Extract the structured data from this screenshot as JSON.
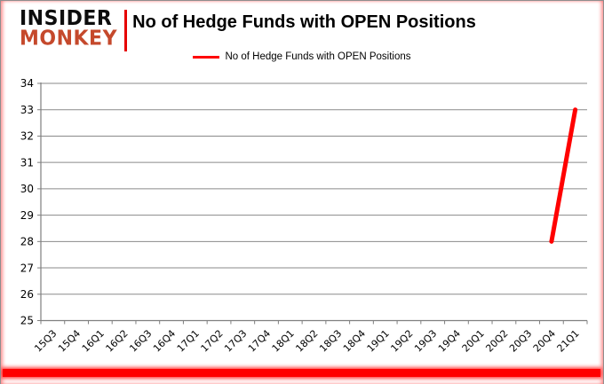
{
  "brand": {
    "line1": "INSIDER",
    "line2": "MONKEY",
    "color": "#c5492c"
  },
  "header": {
    "title": "No of Hedge Funds with OPEN Positions"
  },
  "legend": {
    "label": "No of Hedge Funds with OPEN Positions",
    "line_color": "#ff0000"
  },
  "chart_data": {
    "type": "line",
    "title": "No of Hedge Funds with OPEN Positions",
    "categories": [
      "15Q3",
      "15Q4",
      "16Q1",
      "16Q2",
      "16Q3",
      "16Q4",
      "17Q1",
      "17Q2",
      "17Q3",
      "17Q4",
      "18Q1",
      "18Q2",
      "18Q3",
      "18Q4",
      "19Q1",
      "19Q2",
      "19Q3",
      "19Q4",
      "20Q1",
      "20Q2",
      "20Q3",
      "20Q4",
      "21Q1"
    ],
    "series": [
      {
        "name": "No of Hedge Funds with OPEN Positions",
        "color": "#ff0000",
        "values": [
          null,
          null,
          null,
          null,
          null,
          null,
          null,
          null,
          null,
          null,
          null,
          null,
          null,
          null,
          null,
          null,
          null,
          null,
          null,
          null,
          null,
          28,
          33
        ]
      }
    ],
    "xlabel": "",
    "ylabel": "",
    "ylim": [
      25,
      34
    ],
    "yticks": [
      25,
      26,
      27,
      28,
      29,
      30,
      31,
      32,
      33,
      34
    ],
    "grid": true,
    "legend_position": "top"
  },
  "colors": {
    "grid": "#8a8a8a",
    "axis": "#7f7f7f",
    "accent_red": "#ff0000",
    "frame_border": "#8e8e8e",
    "divider_red": "#e60000"
  }
}
